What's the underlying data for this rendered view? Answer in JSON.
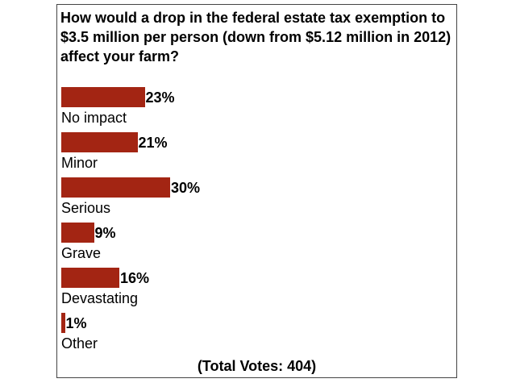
{
  "poll": {
    "question": "How would a drop in the federal estate tax exemption to $3.5 million per person (down from $5.12 million in 2012) affect your farm?",
    "total_votes": "(Total Votes: 404)",
    "bar_color": "#a32513"
  },
  "chart_data": {
    "type": "bar",
    "orientation": "horizontal",
    "title": "How would a drop in the federal estate tax exemption to $3.5 million per person (down from $5.12 million in 2012) affect your farm?",
    "categories": [
      "No impact",
      "Minor",
      "Serious",
      "Grave",
      "Devastating",
      "Other"
    ],
    "values": [
      23,
      21,
      30,
      9,
      16,
      1
    ],
    "value_labels": [
      "23%",
      "21%",
      "30%",
      "9%",
      "16%",
      "1%"
    ],
    "unit": "%",
    "xlim": [
      0,
      30
    ],
    "grid": false,
    "legend": "none"
  }
}
